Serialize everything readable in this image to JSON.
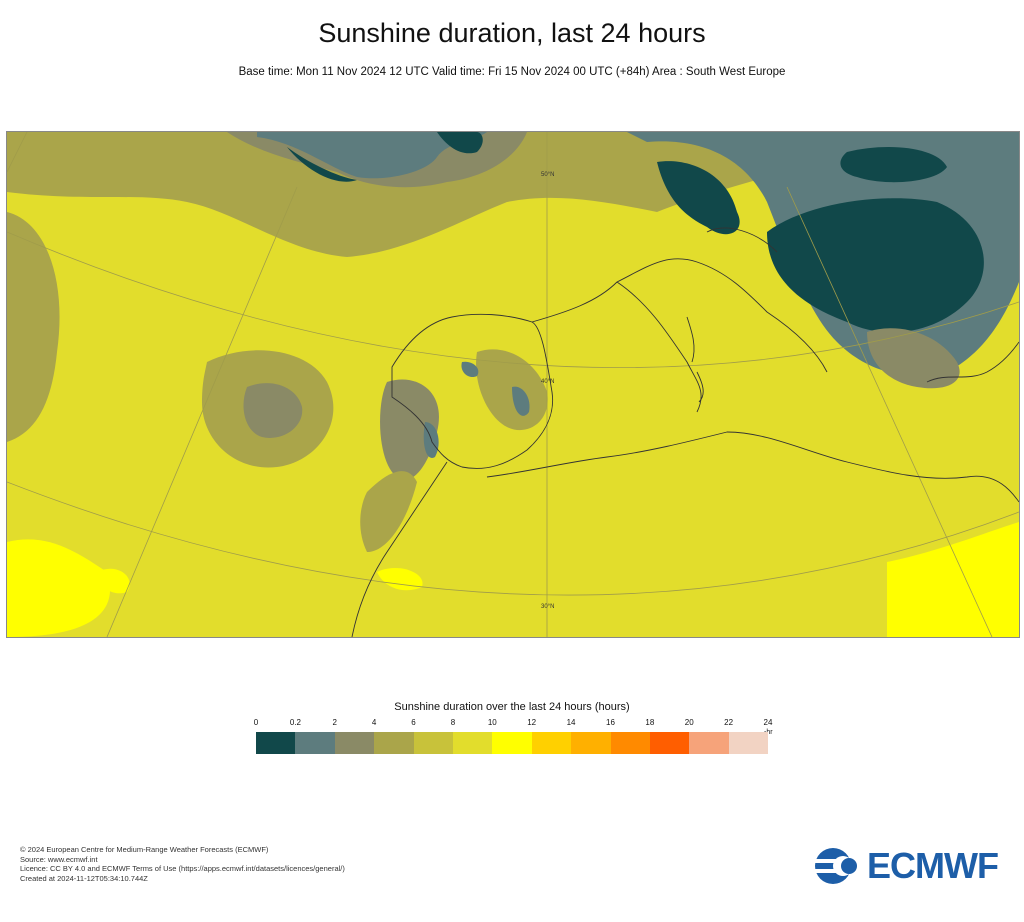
{
  "header": {
    "title": "Sunshine duration, last 24 hours",
    "subtitle": "Base time: Mon 11 Nov 2024 12 UTC Valid time: Fri 15 Nov 2024 00 UTC (+84h) Area : South West Europe"
  },
  "map": {
    "grid_labels": [
      "50°N",
      "40°N",
      "30°N"
    ]
  },
  "legend": {
    "title": "Sunshine duration over the last 24 hours (hours)",
    "ticks": [
      "0",
      "0.2",
      "2",
      "4",
      "6",
      "8",
      "10",
      "12",
      "14",
      "16",
      "18",
      "20",
      "22",
      "24"
    ],
    "unit": "-hr",
    "colors": [
      "#11484a",
      "#5d7c7e",
      "#8a8a66",
      "#aaa54a",
      "#c8c23a",
      "#e2dd2c",
      "#ffff00",
      "#ffd000",
      "#ffb000",
      "#ff8a00",
      "#ff5e00",
      "#f6a37a",
      "#f2d3c3"
    ]
  },
  "footer": {
    "lines": [
      "© 2024 European Centre for Medium-Range Weather Forecasts (ECMWF)",
      "Source: www.ecmwf.int",
      "Licence: CC BY 4.0 and ECMWF Terms of Use (https://apps.ecmwf.int/datasets/licences/general/)",
      "Created at 2024-11-12T05:34:10.744Z"
    ]
  },
  "logo": {
    "text": "ECMWF"
  }
}
